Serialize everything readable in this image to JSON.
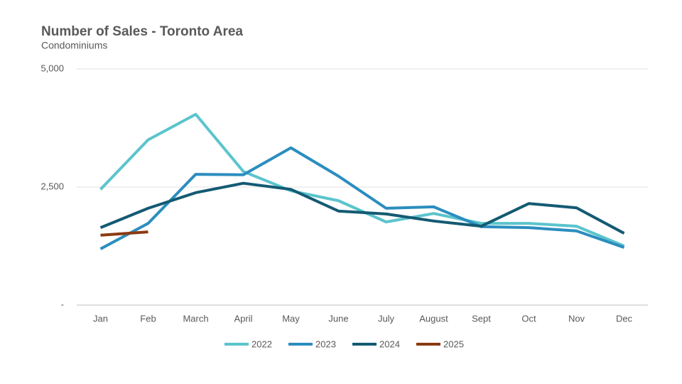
{
  "chart_data": {
    "type": "line",
    "title": "Number of Sales - Toronto Area",
    "subtitle": "Condominiums",
    "categories": [
      "Jan",
      "Feb",
      "March",
      "April",
      "May",
      "June",
      "July",
      "August",
      "Sept",
      "Oct",
      "Nov",
      "Dec"
    ],
    "series": [
      {
        "name": "2022",
        "color": "#5bc4cc",
        "values": [
          2450,
          3500,
          4040,
          2830,
          2420,
          2210,
          1760,
          1940,
          1730,
          1730,
          1670,
          1250
        ]
      },
      {
        "name": "2023",
        "color": "#2b8dbf",
        "values": [
          1190,
          1730,
          2770,
          2760,
          3330,
          2730,
          2050,
          2080,
          1660,
          1640,
          1570,
          1220
        ]
      },
      {
        "name": "2024",
        "color": "#145a73",
        "values": [
          1640,
          2050,
          2380,
          2580,
          2450,
          1990,
          1930,
          1780,
          1670,
          2150,
          2060,
          1520
        ]
      },
      {
        "name": "2025",
        "color": "#8b3a12",
        "values": [
          1480,
          1550,
          null,
          null,
          null,
          null,
          null,
          null,
          null,
          null,
          null,
          null
        ]
      }
    ],
    "ylim": [
      0,
      5000
    ],
    "yticks": [
      {
        "value": 0,
        "label": "-"
      },
      {
        "value": 2500,
        "label": "2,500"
      },
      {
        "value": 5000,
        "label": "5,000"
      }
    ],
    "grid": true,
    "legend": "bottom"
  }
}
